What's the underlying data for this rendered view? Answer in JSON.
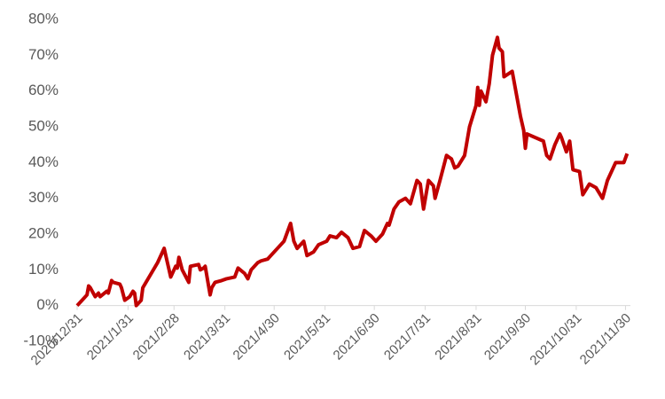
{
  "chart_data": {
    "type": "line",
    "x": [
      "2020/12/31",
      "2021/1/4",
      "2021/1/6",
      "2021/1/7",
      "2021/1/8",
      "2021/1/11",
      "2021/1/13",
      "2021/1/14",
      "2021/1/18",
      "2021/1/19",
      "2021/1/21",
      "2021/1/22",
      "2021/1/26",
      "2021/1/27",
      "2021/1/29",
      "2021/2/1",
      "2021/2/3",
      "2021/2/4",
      "2021/2/5",
      "2021/2/8",
      "2021/2/9",
      "2021/2/18",
      "2021/2/22",
      "2021/2/24",
      "2021/2/25",
      "2021/2/26",
      "2021/3/1",
      "2021/3/2",
      "2021/3/3",
      "2021/3/5",
      "2021/3/9",
      "2021/3/10",
      "2021/3/15",
      "2021/3/16",
      "2021/3/18",
      "2021/3/19",
      "2021/3/22",
      "2021/3/23",
      "2021/3/25",
      "2021/3/29",
      "2021/4/1",
      "2021/4/6",
      "2021/4/8",
      "2021/4/12",
      "2021/4/14",
      "2021/4/16",
      "2021/4/20",
      "2021/4/22",
      "2021/4/26",
      "2021/4/28",
      "2021/5/6",
      "2021/5/10",
      "2021/5/12",
      "2021/5/14",
      "2021/5/18",
      "2021/5/20",
      "2021/5/24",
      "2021/5/27",
      "2021/6/1",
      "2021/6/3",
      "2021/6/7",
      "2021/6/10",
      "2021/6/14",
      "2021/6/17",
      "2021/6/21",
      "2021/6/24",
      "2021/6/28",
      "2021/7/1",
      "2021/7/5",
      "2021/7/8",
      "2021/7/9",
      "2021/7/12",
      "2021/7/15",
      "2021/7/19",
      "2021/7/22",
      "2021/7/26",
      "2021/7/28",
      "2021/7/30",
      "2021/8/2",
      "2021/8/5",
      "2021/8/6",
      "2021/8/9",
      "2021/8/13",
      "2021/8/16",
      "2021/8/18",
      "2021/8/20",
      "2021/8/24",
      "2021/8/27",
      "2021/8/31",
      "2021/9/1",
      "2021/9/2",
      "2021/9/3",
      "2021/9/6",
      "2021/9/8",
      "2021/9/10",
      "2021/9/13",
      "2021/9/14",
      "2021/9/16",
      "2021/9/17",
      "2021/9/22",
      "2021/9/27",
      "2021/9/29",
      "2021/9/30",
      "2021/10/1",
      "2021/10/11",
      "2021/10/13",
      "2021/10/15",
      "2021/10/18",
      "2021/10/21",
      "2021/10/22",
      "2021/10/25",
      "2021/10/27",
      "2021/10/29",
      "2021/11/2",
      "2021/11/4",
      "2021/11/8",
      "2021/11/12",
      "2021/11/16",
      "2021/11/19",
      "2021/11/24",
      "2021/11/29",
      "2021/12/1"
    ],
    "series": [
      {
        "color": "#c00000",
        "values": [
          0,
          2,
          3,
          5.5,
          5,
          2.5,
          3.5,
          2.5,
          4,
          3.5,
          7,
          6.5,
          6,
          5,
          1.5,
          2.5,
          4,
          3.5,
          0,
          1.5,
          5,
          12,
          16,
          12,
          10,
          8,
          11,
          10.5,
          13.5,
          10,
          6.5,
          11,
          11.5,
          10,
          10.5,
          11,
          3,
          5,
          6.5,
          7,
          7.5,
          8,
          10.5,
          9,
          7.5,
          10,
          12,
          12.5,
          13,
          14,
          18,
          23,
          18,
          16,
          18,
          14,
          15,
          17,
          18,
          19.5,
          19,
          20.5,
          19,
          16,
          16.5,
          21,
          19.5,
          18,
          20,
          23,
          22.5,
          27,
          29,
          30,
          28.5,
          35,
          34,
          27,
          35,
          33.5,
          30,
          35,
          42,
          41,
          38.5,
          39,
          42,
          50,
          56,
          61,
          56,
          60,
          57,
          62,
          70,
          75,
          72,
          71,
          64,
          65.5,
          53,
          49,
          44,
          48,
          46,
          42,
          41,
          45,
          48,
          47,
          43,
          46,
          38,
          37.5,
          31,
          34,
          33,
          30,
          35,
          40,
          40,
          42.5
        ]
      }
    ],
    "xlim": [
      "2020/12/31",
      "2021/12/3"
    ],
    "xticks": [
      "2020/12/31",
      "2021/1/31",
      "2021/2/28",
      "2021/3/31",
      "2021/4/30",
      "2021/5/31",
      "2021/6/30",
      "2021/7/31",
      "2021/8/31",
      "2021/9/30",
      "2021/10/31",
      "2021/11/30"
    ],
    "ylim": [
      -10,
      80
    ],
    "yticks": [
      {
        "value": -10,
        "label": "-10%"
      },
      {
        "value": 0,
        "label": "0%"
      },
      {
        "value": 10,
        "label": "10%"
      },
      {
        "value": 20,
        "label": "20%"
      },
      {
        "value": 30,
        "label": "30%"
      },
      {
        "value": 40,
        "label": "40%"
      },
      {
        "value": 50,
        "label": "50%"
      },
      {
        "value": 60,
        "label": "60%"
      },
      {
        "value": 70,
        "label": "70%"
      },
      {
        "value": 80,
        "label": "80%"
      }
    ]
  }
}
